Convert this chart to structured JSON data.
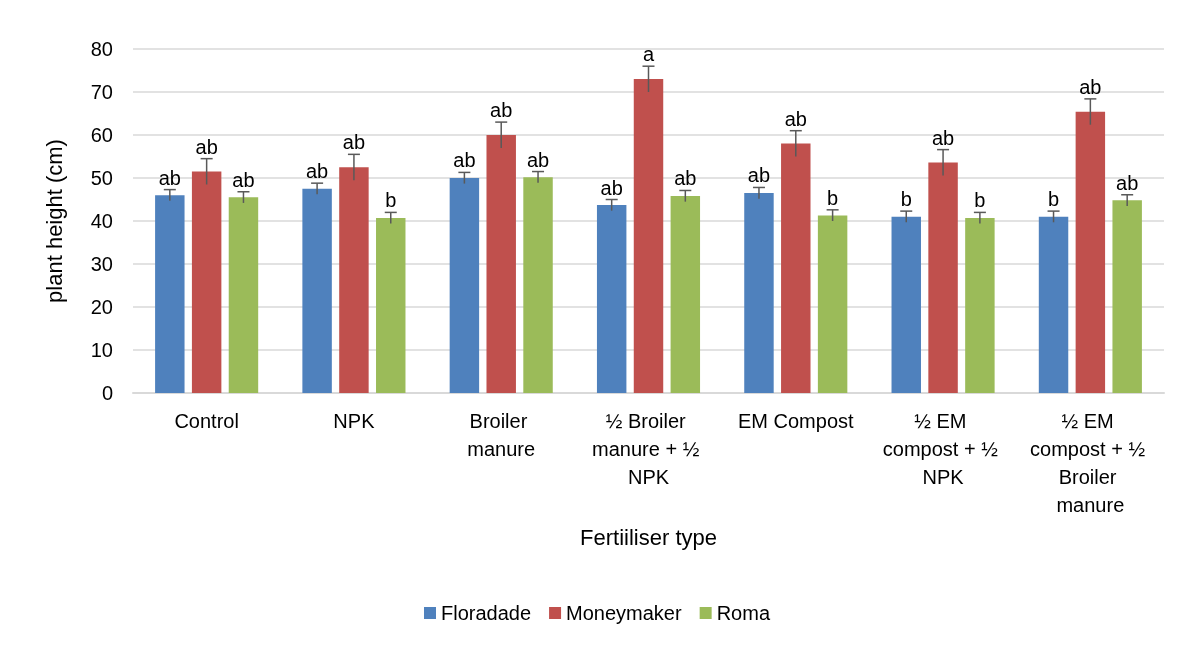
{
  "chart_data": {
    "type": "bar",
    "xlabel": "Fertiiliser type",
    "ylabel": "plant height (cm)",
    "categories": [
      "Control",
      "NPK",
      "Broiler manure",
      "½ Broiler manure + ½ NPK",
      "EM Compost",
      "½ EM compost + ½ NPK",
      "½ EM compost + ½ Broiler manure"
    ],
    "series": [
      {
        "name": "Floradade",
        "color": "#4f81bd",
        "values": [
          46,
          47.5,
          50,
          43.7,
          46.5,
          41,
          41
        ],
        "errors": [
          1.3,
          1.3,
          1.3,
          1.3,
          1.3,
          1.3,
          1.3
        ],
        "value_labels": [
          "ab",
          "ab",
          "ab",
          "ab",
          "ab",
          "b",
          "b"
        ]
      },
      {
        "name": "Moneymaker",
        "color": "#c0504d",
        "values": [
          51.5,
          52.5,
          60,
          73,
          58,
          53.6,
          65.4
        ],
        "errors": [
          3,
          3,
          3,
          3,
          3,
          3,
          3
        ],
        "value_labels": [
          "ab",
          "ab",
          "ab",
          "a",
          "ab",
          "ab",
          "ab"
        ]
      },
      {
        "name": "Roma",
        "color": "#9bbb59",
        "values": [
          45.5,
          40.7,
          50.2,
          45.8,
          41.3,
          40.7,
          44.8
        ],
        "errors": [
          1.3,
          1.3,
          1.3,
          1.3,
          1.3,
          1.3,
          1.3
        ],
        "value_labels": [
          "ab",
          "b",
          "ab",
          "ab",
          "b",
          "b",
          "ab"
        ]
      }
    ],
    "ylim": [
      0,
      80
    ],
    "yticks": [
      0,
      10,
      20,
      30,
      40,
      50,
      60,
      70,
      80
    ],
    "grid": "y",
    "legend": "bottom"
  }
}
